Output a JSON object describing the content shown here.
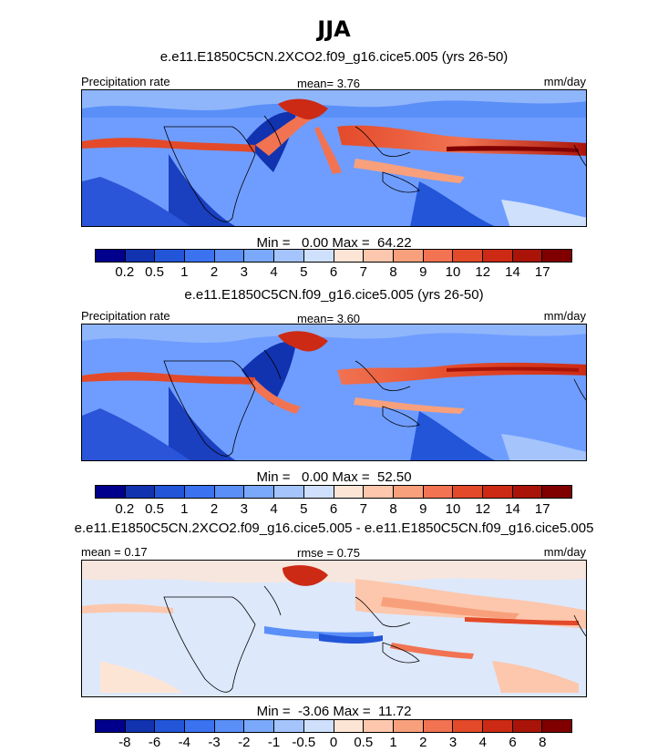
{
  "season_title": "JJA",
  "panels": [
    {
      "id": "top",
      "title": "e.e11.E1850C5CN.2XCO2.f09_g16.cice5.005 (yrs 26-50)",
      "left_label": "Precipitation rate",
      "center_label": "mean=  3.76",
      "right_label": "mm/day",
      "stats": "Min =   0.00 Max =  64.22",
      "cbar": "precip"
    },
    {
      "id": "middle",
      "title": "e.e11.E1850C5CN.f09_g16.cice5.005 (yrs 26-50)",
      "left_label": "Precipitation rate",
      "center_label": "mean=  3.60",
      "right_label": "mm/day",
      "stats": "Min =   0.00 Max =  52.50",
      "cbar": "precip"
    },
    {
      "id": "bottom",
      "title": "e.e11.E1850C5CN.2XCO2.f09_g16.cice5.005 - e.e11.E1850C5CN.f09_g16.cice5.005",
      "left_label": "mean =  0.17",
      "center_label": "rmse =  0.75",
      "right_label": "mm/day",
      "stats": "Min =  -3.06 Max =  11.72",
      "cbar": "diff"
    }
  ],
  "colorbars": {
    "precip": {
      "colors": [
        "#00008c",
        "#1133b0",
        "#2255d8",
        "#3a72f0",
        "#5a8ff8",
        "#7aa8fa",
        "#a4c4fb",
        "#cfe0fd",
        "#fde5d6",
        "#fcc7ac",
        "#f8a07c",
        "#f17352",
        "#e34a2a",
        "#cc2a14",
        "#aa1408",
        "#800000"
      ],
      "labels": [
        "0.2",
        "0.5",
        "1",
        "2",
        "3",
        "4",
        "5",
        "6",
        "7",
        "8",
        "9",
        "10",
        "12",
        "14",
        "17"
      ]
    },
    "diff": {
      "colors": [
        "#00008c",
        "#1133b0",
        "#2255d8",
        "#3a72f0",
        "#5a8ff8",
        "#7aa8fa",
        "#a4c4fb",
        "#cfe0fd",
        "#fde5d6",
        "#fcc7ac",
        "#f8a07c",
        "#f17352",
        "#e34a2a",
        "#cc2a14",
        "#aa1408",
        "#800000"
      ],
      "labels": [
        "-8",
        "-6",
        "-4",
        "-3",
        "-2",
        "-1",
        "-0.5",
        "0",
        "0.5",
        "1",
        "2",
        "3",
        "4",
        "6",
        "8"
      ]
    }
  },
  "chart_data": [
    {
      "type": "heatmap",
      "title": "e.e11.E1850C5CN.2XCO2.f09_g16.cice5.005 (yrs 26-50)",
      "variable": "Precipitation rate",
      "units": "mm/day",
      "mean": 3.76,
      "min": 0.0,
      "max": 64.22,
      "levels": [
        0.2,
        0.5,
        1,
        2,
        3,
        4,
        5,
        6,
        7,
        8,
        9,
        10,
        12,
        14,
        17
      ]
    },
    {
      "type": "heatmap",
      "title": "e.e11.E1850C5CN.f09_g16.cice5.005 (yrs 26-50)",
      "variable": "Precipitation rate",
      "units": "mm/day",
      "mean": 3.6,
      "min": 0.0,
      "max": 52.5,
      "levels": [
        0.2,
        0.5,
        1,
        2,
        3,
        4,
        5,
        6,
        7,
        8,
        9,
        10,
        12,
        14,
        17
      ]
    },
    {
      "type": "heatmap",
      "title": "e.e11.E1850C5CN.2XCO2.f09_g16.cice5.005 - e.e11.E1850C5CN.f09_g16.cice5.005",
      "units": "mm/day",
      "mean": 0.17,
      "rmse": 0.75,
      "min": -3.06,
      "max": 11.72,
      "levels": [
        -8,
        -6,
        -4,
        -3,
        -2,
        -1,
        -0.5,
        0,
        0.5,
        1,
        2,
        3,
        4,
        6,
        8
      ]
    }
  ]
}
